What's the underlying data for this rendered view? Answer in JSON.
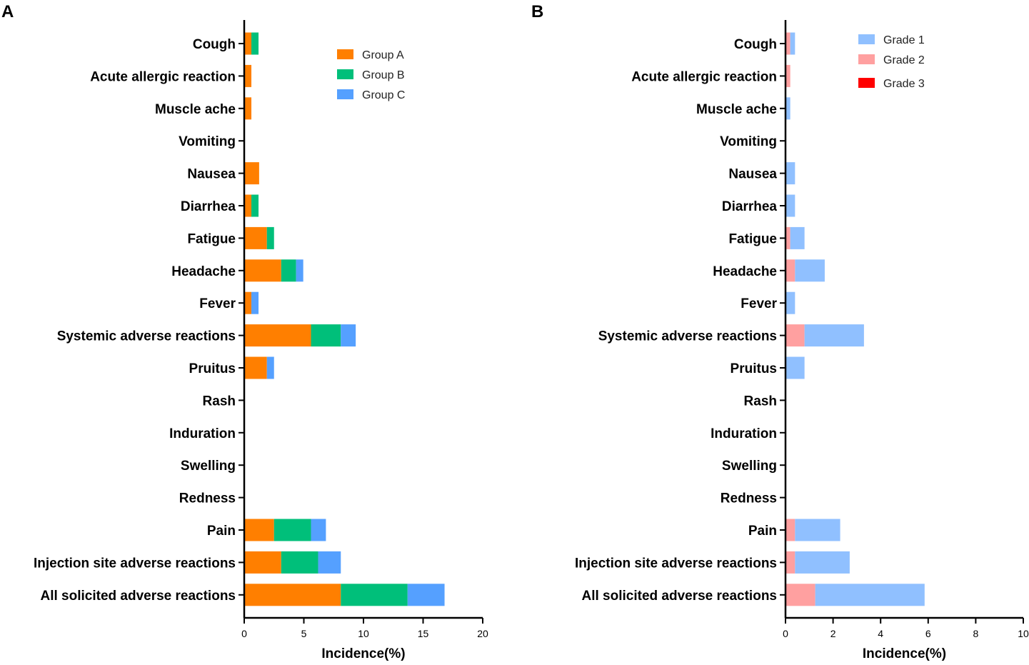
{
  "chart_data": [
    {
      "panel": "A",
      "type": "bar",
      "orientation": "horizontal",
      "stacked": true,
      "title": "",
      "xlabel": "Incidence(%)",
      "ylabel": "",
      "xlim": [
        0,
        20
      ],
      "xticks": [
        0,
        5,
        10,
        15,
        20
      ],
      "categories": [
        "Cough",
        "Acute allergic reaction",
        "Muscle ache",
        "Vomiting",
        "Nausea",
        "Diarrhea",
        "Fatigue",
        "Headache",
        "Fever",
        "Systemic adverse reactions",
        "Pruitus",
        "Rash",
        "Induration",
        "Swelling",
        "Redness",
        "Pain",
        "Injection site adverse reactions",
        "All solicited adverse reactions"
      ],
      "series": [
        {
          "name": "Group A",
          "color": "#FF7F00",
          "values": [
            0.6,
            0.6,
            0.6,
            0,
            1.25,
            0.6,
            1.9,
            3.1,
            0.6,
            5.6,
            1.9,
            0,
            0,
            0,
            0,
            2.5,
            3.1,
            8.1
          ]
        },
        {
          "name": "Group B",
          "color": "#00BF7A",
          "values": [
            0.6,
            0,
            0,
            0,
            0,
            0.6,
            0.6,
            1.25,
            0,
            2.5,
            0,
            0,
            0,
            0,
            0,
            3.1,
            3.1,
            5.6
          ]
        },
        {
          "name": "Group C",
          "color": "#55A0FF",
          "values": [
            0,
            0,
            0,
            0,
            0,
            0,
            0,
            0.6,
            0.6,
            1.25,
            0.6,
            0,
            0,
            0,
            0,
            1.25,
            1.9,
            3.1
          ]
        }
      ],
      "legend_position": "top-right"
    },
    {
      "panel": "B",
      "type": "bar",
      "orientation": "horizontal",
      "stacked": true,
      "title": "",
      "xlabel": "Incidence(%)",
      "ylabel": "",
      "xlim": [
        0,
        10
      ],
      "xticks": [
        0,
        2,
        4,
        6,
        8,
        10
      ],
      "categories": [
        "Cough",
        "Acute allergic reaction",
        "Muscle ache",
        "Vomiting",
        "Nausea",
        "Diarrhea",
        "Fatigue",
        "Headache",
        "Fever",
        "Systemic adverse reactions",
        "Pruitus",
        "Rash",
        "Induration",
        "Swelling",
        "Redness",
        "Pain",
        "Injection site adverse reactions",
        "All solicited adverse reactions"
      ],
      "series": [
        {
          "name": "Grade 2",
          "color": "#FFA0A0",
          "values": [
            0.2,
            0.2,
            0,
            0,
            0,
            0,
            0.2,
            0.4,
            0,
            0.8,
            0,
            0,
            0,
            0,
            0,
            0.4,
            0.4,
            1.25
          ]
        },
        {
          "name": "Grade 1",
          "color": "#90C0FF",
          "values": [
            0.2,
            0,
            0.2,
            0,
            0.4,
            0.4,
            0.6,
            1.25,
            0.4,
            2.5,
            0.8,
            0,
            0,
            0,
            0,
            1.9,
            2.3,
            4.6
          ]
        },
        {
          "name": "Grade 3",
          "color": "#FF0000",
          "values": [
            0,
            0,
            0,
            0,
            0,
            0,
            0,
            0,
            0,
            0,
            0,
            0,
            0,
            0,
            0,
            0,
            0,
            0
          ]
        }
      ],
      "legend_order": [
        "Grade 1",
        "Grade 2",
        "Grade 3"
      ],
      "legend_position": "top-right"
    }
  ]
}
